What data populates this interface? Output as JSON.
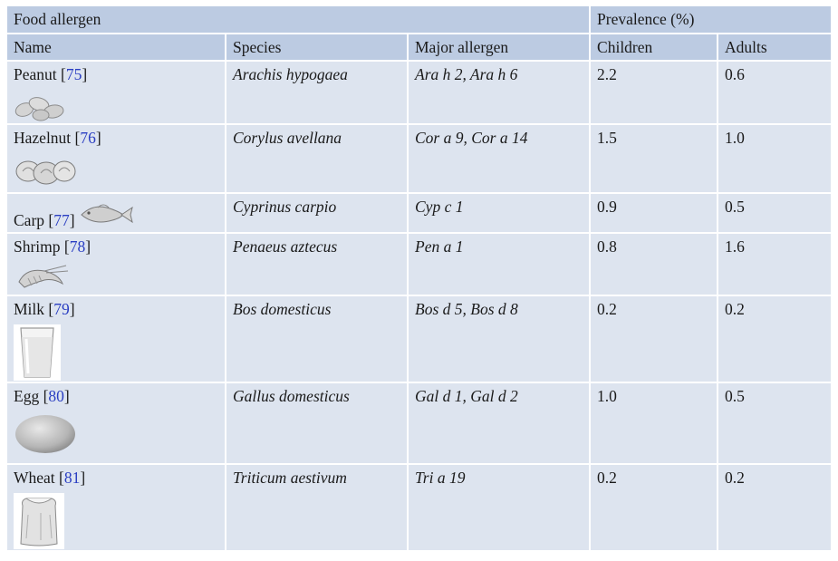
{
  "table": {
    "group_headers": {
      "food_allergen": "Food allergen",
      "prevalence": "Prevalence (%)"
    },
    "columns": [
      "Name",
      "Species",
      "Major allergen",
      "Children",
      "Adults"
    ],
    "rows": [
      {
        "name": "Peanut",
        "ref": "75",
        "open": "[",
        "close": "]",
        "species": "Arachis hypogaea",
        "allergen": "Ara h 2, Ara h 6",
        "children": "2.2",
        "adults": "0.6",
        "icon": "peanut-icon"
      },
      {
        "name": "Hazelnut",
        "ref": "76",
        "open": "[",
        "close": "]",
        "species": "Corylus avellana",
        "allergen": "Cor a 9, Cor a 14",
        "children": "1.5",
        "adults": "1.0",
        "icon": "hazelnut-icon"
      },
      {
        "name": "Carp",
        "ref": "77",
        "open": "[",
        "close": "]",
        "species": "Cyprinus carpio",
        "allergen": "Cyp c 1",
        "children": "0.9",
        "adults": "0.5",
        "icon": "fish-icon"
      },
      {
        "name": "Shrimp",
        "ref": "78",
        "open": "[",
        "close": "]",
        "species": "Penaeus aztecus",
        "allergen": "Pen a 1",
        "children": "0.8",
        "adults": "1.6",
        "icon": "shrimp-icon"
      },
      {
        "name": "Milk",
        "ref": "79",
        "open": "[",
        "close": "]",
        "species": "Bos domesticus",
        "allergen": "Bos d 5, Bos d 8",
        "children": "0.2",
        "adults": "0.2",
        "icon": "milk-glass-icon"
      },
      {
        "name": "Egg",
        "ref": "80",
        "open": "[",
        "close": "]",
        "species": "Gallus domesticus",
        "allergen": "Gal d 1, Gal d 2",
        "children": "1.0",
        "adults": "0.5",
        "icon": "egg-icon"
      },
      {
        "name": "Wheat",
        "ref": "81",
        "open": "[",
        "close": "]",
        "species": "Triticum aestivum",
        "allergen": "Tri a 19",
        "children": "0.2",
        "adults": "0.2",
        "icon": "flour-sack-icon"
      }
    ]
  }
}
